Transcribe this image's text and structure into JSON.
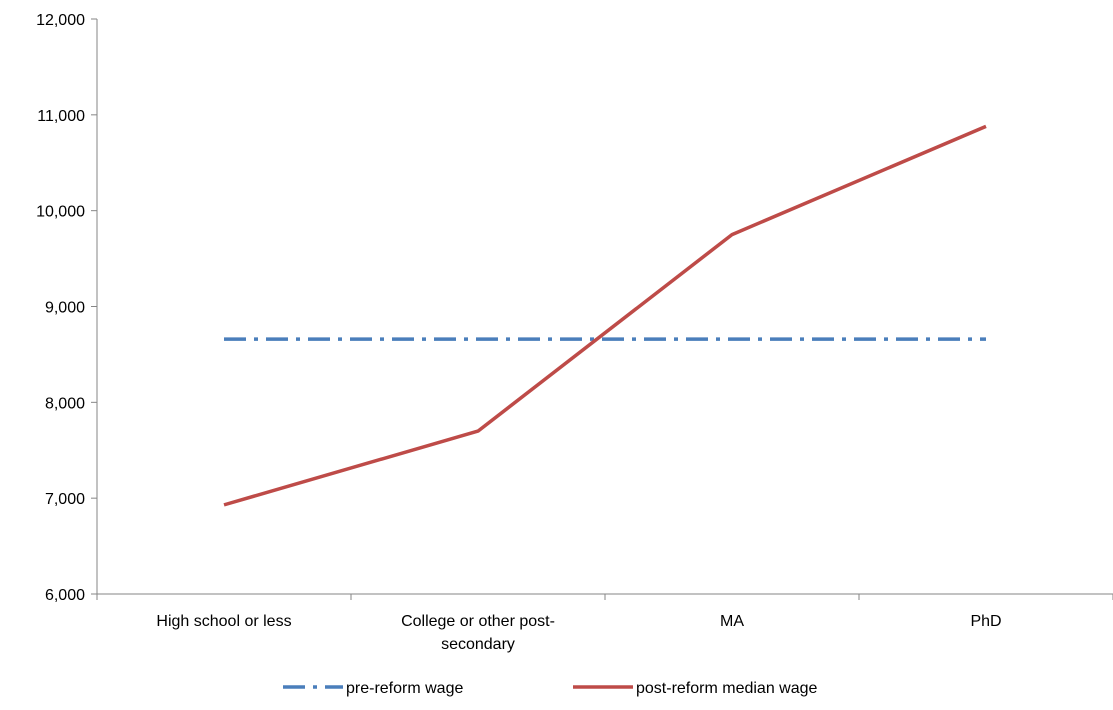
{
  "chart_data": {
    "type": "line",
    "title": "",
    "xlabel": "",
    "ylabel": "",
    "categories": [
      [
        "High school or less"
      ],
      [
        "College or other post-",
        "secondary"
      ],
      [
        "MA"
      ],
      [
        "PhD"
      ]
    ],
    "ylim": [
      6000,
      12000
    ],
    "yticks": [
      6000,
      7000,
      8000,
      9000,
      10000,
      11000,
      12000
    ],
    "ytick_labels": [
      "6,000",
      "7,000",
      "8,000",
      "9,000",
      "10,000",
      "11,000",
      "12,000"
    ],
    "grid": false,
    "legend_position": "bottom",
    "series": [
      {
        "name": "pre-reform wage",
        "values": [
          8660,
          8660,
          8660,
          8660
        ],
        "color": "#4a7ebb",
        "style": "dash-dot"
      },
      {
        "name": "post-reform median wage",
        "values": [
          6930,
          7700,
          9750,
          10880
        ],
        "color": "#be4b48",
        "style": "solid"
      }
    ]
  }
}
